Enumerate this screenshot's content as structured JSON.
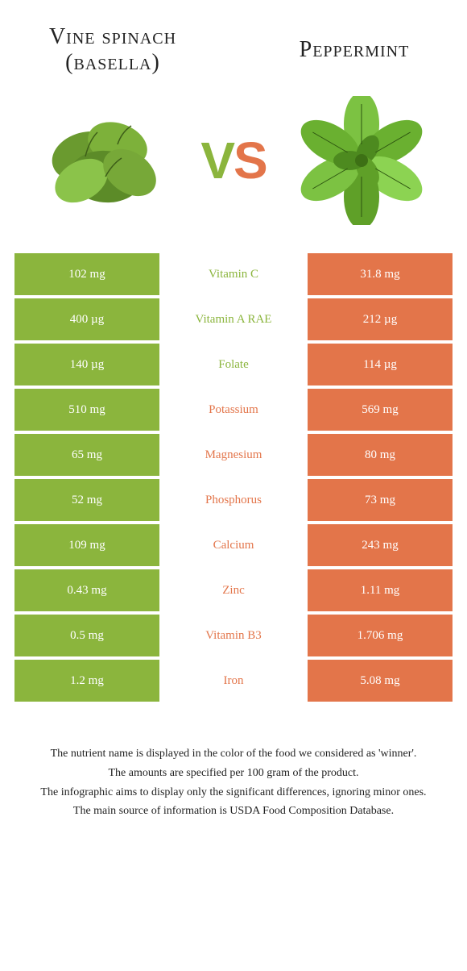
{
  "colors": {
    "green": "#8bb53d",
    "orange": "#e3754a"
  },
  "left_food": {
    "name": "Vine spinach (basella)"
  },
  "right_food": {
    "name": "Peppermint"
  },
  "vs": {
    "v": "V",
    "s": "S"
  },
  "rows": [
    {
      "nutrient": "Vitamin C",
      "left": "102 mg",
      "right": "31.8 mg",
      "winner": "left"
    },
    {
      "nutrient": "Vitamin A RAE",
      "left": "400 µg",
      "right": "212 µg",
      "winner": "left"
    },
    {
      "nutrient": "Folate",
      "left": "140 µg",
      "right": "114 µg",
      "winner": "left"
    },
    {
      "nutrient": "Potassium",
      "left": "510 mg",
      "right": "569 mg",
      "winner": "right"
    },
    {
      "nutrient": "Magnesium",
      "left": "65 mg",
      "right": "80 mg",
      "winner": "right"
    },
    {
      "nutrient": "Phosphorus",
      "left": "52 mg",
      "right": "73 mg",
      "winner": "right"
    },
    {
      "nutrient": "Calcium",
      "left": "109 mg",
      "right": "243 mg",
      "winner": "right"
    },
    {
      "nutrient": "Zinc",
      "left": "0.43 mg",
      "right": "1.11 mg",
      "winner": "right"
    },
    {
      "nutrient": "Vitamin B3",
      "left": "0.5 mg",
      "right": "1.706 mg",
      "winner": "right"
    },
    {
      "nutrient": "Iron",
      "left": "1.2 mg",
      "right": "5.08 mg",
      "winner": "right"
    }
  ],
  "footer": [
    "The nutrient name is displayed in the color of the food we considered as 'winner'.",
    "The amounts are specified per 100 gram of the product.",
    "The infographic aims to display only the significant differences, ignoring minor ones.",
    "The main source of information is USDA Food Composition Database."
  ]
}
